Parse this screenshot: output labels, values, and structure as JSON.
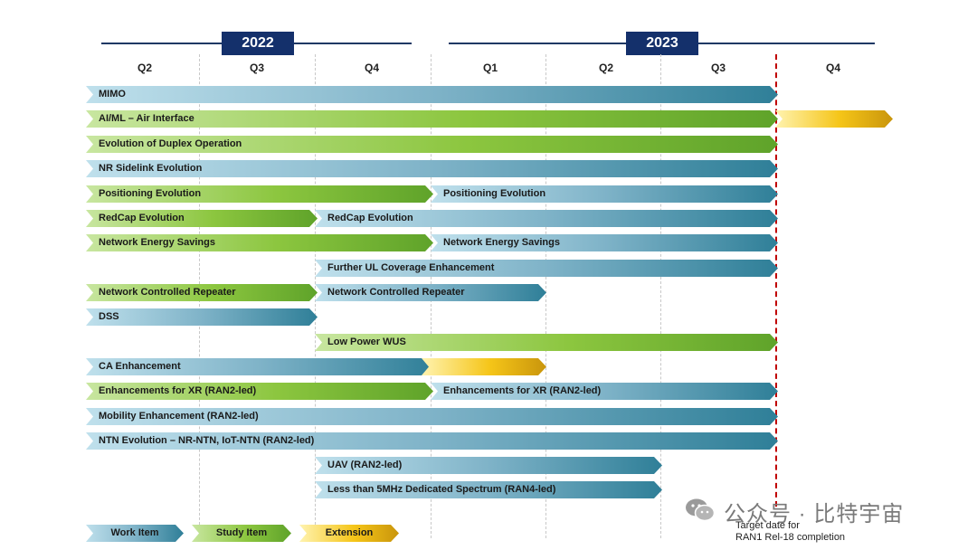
{
  "years": [
    "2022",
    "2023"
  ],
  "quarters": [
    "Q2",
    "Q3",
    "Q4",
    "Q1",
    "Q2",
    "Q3",
    "Q4"
  ],
  "rows": [
    {
      "segments": [
        {
          "label": "MIMO",
          "type": "work"
        }
      ]
    },
    {
      "segments": [
        {
          "label": "AI/ML – Air Interface",
          "type": "study"
        },
        {
          "label": "",
          "type": "ext"
        }
      ]
    },
    {
      "segments": [
        {
          "label": "Evolution of Duplex Operation",
          "type": "study"
        }
      ]
    },
    {
      "segments": [
        {
          "label": "NR Sidelink Evolution",
          "type": "work"
        }
      ]
    },
    {
      "segments": [
        {
          "label": "Positioning Evolution",
          "type": "study"
        },
        {
          "label": "Positioning Evolution",
          "type": "work"
        }
      ]
    },
    {
      "segments": [
        {
          "label": "RedCap Evolution",
          "type": "study"
        },
        {
          "label": "RedCap Evolution",
          "type": "work"
        }
      ]
    },
    {
      "segments": [
        {
          "label": "Network Energy Savings",
          "type": "study"
        },
        {
          "label": "Network Energy Savings",
          "type": "work"
        }
      ]
    },
    {
      "segments": [
        {
          "label": "Further UL Coverage Enhancement",
          "type": "work"
        }
      ]
    },
    {
      "segments": [
        {
          "label": "Network Controlled Repeater",
          "type": "study"
        },
        {
          "label": "Network Controlled Repeater",
          "type": "work"
        }
      ]
    },
    {
      "segments": [
        {
          "label": "DSS",
          "type": "work"
        }
      ]
    },
    {
      "segments": [
        {
          "label": "Low Power WUS",
          "type": "study"
        }
      ]
    },
    {
      "segments": [
        {
          "label": "CA Enhancement",
          "type": "work"
        },
        {
          "label": "",
          "type": "ext"
        }
      ]
    },
    {
      "segments": [
        {
          "label": "Enhancements for XR (RAN2-led)",
          "type": "study"
        },
        {
          "label": "Enhancements for XR (RAN2-led)",
          "type": "work"
        }
      ]
    },
    {
      "segments": [
        {
          "label": "Mobility Enhancement (RAN2-led)",
          "type": "work"
        }
      ]
    },
    {
      "segments": [
        {
          "label": "NTN Evolution – NR-NTN, IoT-NTN (RAN2-led)",
          "type": "work"
        }
      ]
    },
    {
      "segments": [
        {
          "label": "UAV (RAN2-led)",
          "type": "work"
        }
      ]
    },
    {
      "segments": [
        {
          "label": "Less than 5MHz Dedicated Spectrum (RAN4-led)",
          "type": "work"
        }
      ]
    }
  ],
  "legend": [
    {
      "label": "Work Item",
      "type": "work"
    },
    {
      "label": "Study Item",
      "type": "study"
    },
    {
      "label": "Extension",
      "type": "ext"
    }
  ],
  "target_note": [
    "Target date for",
    "RAN1 Rel-18 completion"
  ],
  "watermark": "公众号 · 比特宇宙"
}
